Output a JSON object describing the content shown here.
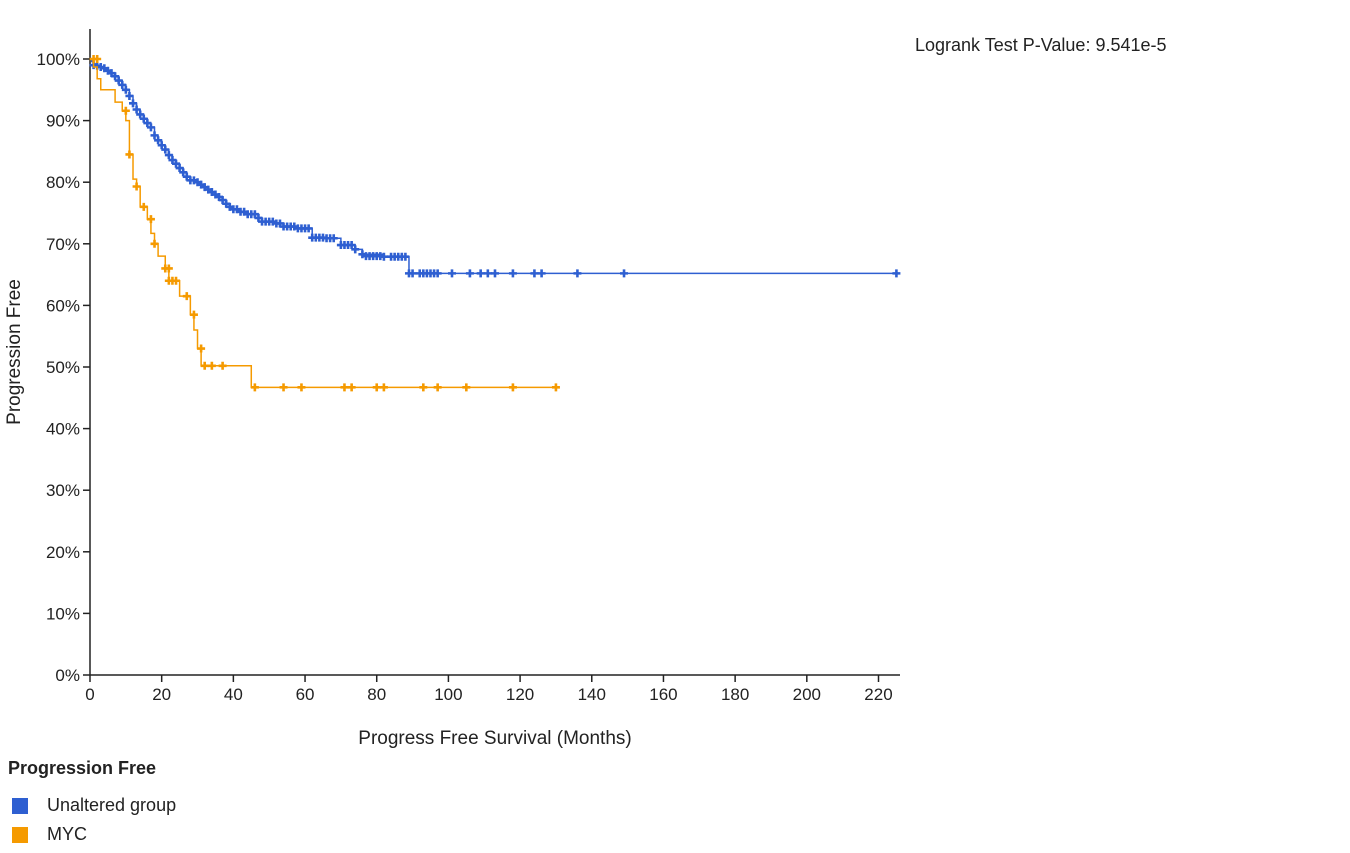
{
  "chart_data": {
    "type": "line",
    "subtype": "kaplan-meier",
    "title": "",
    "xlabel": "Progress Free Survival (Months)",
    "ylabel": "Progression Free",
    "xlim": [
      0,
      226
    ],
    "ylim": [
      0,
      100
    ],
    "x_ticks": [
      "0",
      "20",
      "40",
      "60",
      "80",
      "100",
      "120",
      "140",
      "160",
      "180",
      "200",
      "220"
    ],
    "y_ticks": [
      "0%",
      "10%",
      "20%",
      "30%",
      "40%",
      "50%",
      "60%",
      "70%",
      "80%",
      "90%",
      "100%"
    ],
    "grid": false,
    "annotation": "Logrank Test P-Value: 9.541e-5",
    "legend": {
      "title": "Progression Free",
      "placement": "bottom-left",
      "items": [
        {
          "label": "Unaltered group",
          "color": "#2e5fd1"
        },
        {
          "label": "MYC",
          "color": "#f59a00"
        }
      ]
    },
    "series": [
      {
        "name": "Unaltered group",
        "color": "#2e5fd1",
        "steps": [
          [
            0,
            100
          ],
          [
            0.5,
            99.6
          ],
          [
            1,
            99.2
          ],
          [
            2,
            98.9
          ],
          [
            3,
            98.7
          ],
          [
            4,
            98.5
          ],
          [
            5,
            98.1
          ],
          [
            6,
            97.7
          ],
          [
            7,
            97.2
          ],
          [
            8,
            96.5
          ],
          [
            9,
            95.8
          ],
          [
            10,
            95.0
          ],
          [
            11,
            94.0
          ],
          [
            12,
            92.8
          ],
          [
            13,
            91.8
          ],
          [
            14,
            91.0
          ],
          [
            15,
            90.3
          ],
          [
            16,
            89.6
          ],
          [
            17,
            88.9
          ],
          [
            18,
            87.6
          ],
          [
            19,
            86.8
          ],
          [
            20,
            86.0
          ],
          [
            21,
            85.3
          ],
          [
            22,
            84.4
          ],
          [
            23,
            83.6
          ],
          [
            24,
            83.0
          ],
          [
            25,
            82.3
          ],
          [
            26,
            81.6
          ],
          [
            27,
            80.9
          ],
          [
            28,
            80.3
          ],
          [
            30,
            80.0
          ],
          [
            31,
            79.6
          ],
          [
            32,
            79.2
          ],
          [
            33,
            78.8
          ],
          [
            34,
            78.4
          ],
          [
            35,
            78.0
          ],
          [
            36,
            77.6
          ],
          [
            37,
            77.1
          ],
          [
            38,
            76.5
          ],
          [
            39,
            76.0
          ],
          [
            40,
            75.6
          ],
          [
            42,
            75.2
          ],
          [
            44,
            74.8
          ],
          [
            47,
            74.2
          ],
          [
            48,
            73.6
          ],
          [
            52,
            73.3
          ],
          [
            54,
            72.8
          ],
          [
            58,
            72.5
          ],
          [
            62,
            71.0
          ],
          [
            66,
            70.9
          ],
          [
            70,
            69.8
          ],
          [
            74,
            69.1
          ],
          [
            76,
            68.3
          ],
          [
            82,
            67.9
          ],
          [
            88,
            67.9
          ],
          [
            89,
            65.2
          ],
          [
            226,
            65.2
          ]
        ],
        "censored": [
          [
            1,
            99
          ],
          [
            2,
            98.9
          ],
          [
            3,
            98.7
          ],
          [
            4,
            98.5
          ],
          [
            5,
            98.1
          ],
          [
            6,
            97.7
          ],
          [
            7,
            97.2
          ],
          [
            8,
            96.5
          ],
          [
            9,
            95.8
          ],
          [
            10,
            95
          ],
          [
            11,
            94
          ],
          [
            12,
            92.8
          ],
          [
            13,
            91.8
          ],
          [
            14,
            91
          ],
          [
            15,
            90.3
          ],
          [
            16,
            89.6
          ],
          [
            17,
            88.9
          ],
          [
            18,
            87.6
          ],
          [
            19,
            86.8
          ],
          [
            20,
            86
          ],
          [
            21,
            85.3
          ],
          [
            22,
            84.4
          ],
          [
            23,
            83.6
          ],
          [
            24,
            83
          ],
          [
            25,
            82.3
          ],
          [
            26,
            81.6
          ],
          [
            27,
            80.9
          ],
          [
            28,
            80.3
          ],
          [
            29,
            80.3
          ],
          [
            30,
            80
          ],
          [
            31,
            79.6
          ],
          [
            32,
            79.2
          ],
          [
            33,
            78.8
          ],
          [
            34,
            78.4
          ],
          [
            35,
            78
          ],
          [
            36,
            77.6
          ],
          [
            37,
            77.1
          ],
          [
            38,
            76.5
          ],
          [
            39,
            76
          ],
          [
            40,
            75.6
          ],
          [
            41,
            75.6
          ],
          [
            42,
            75.2
          ],
          [
            43,
            75.2
          ],
          [
            44,
            74.8
          ],
          [
            45,
            74.8
          ],
          [
            46,
            74.8
          ],
          [
            47,
            74.2
          ],
          [
            48,
            73.6
          ],
          [
            49,
            73.6
          ],
          [
            50,
            73.6
          ],
          [
            51,
            73.6
          ],
          [
            52,
            73.3
          ],
          [
            53,
            73.3
          ],
          [
            54,
            72.8
          ],
          [
            55,
            72.8
          ],
          [
            56,
            72.8
          ],
          [
            57,
            72.8
          ],
          [
            58,
            72.5
          ],
          [
            59,
            72.5
          ],
          [
            60,
            72.5
          ],
          [
            61,
            72.5
          ],
          [
            62,
            71
          ],
          [
            63,
            71
          ],
          [
            64,
            71
          ],
          [
            65,
            71
          ],
          [
            66,
            70.9
          ],
          [
            67,
            70.9
          ],
          [
            68,
            70.9
          ],
          [
            70,
            69.8
          ],
          [
            71,
            69.8
          ],
          [
            72,
            69.8
          ],
          [
            73,
            69.8
          ],
          [
            74,
            69.1
          ],
          [
            76,
            68.3
          ],
          [
            77,
            68
          ],
          [
            78,
            68
          ],
          [
            79,
            68
          ],
          [
            80,
            68
          ],
          [
            81,
            68
          ],
          [
            82,
            67.9
          ],
          [
            84,
            67.9
          ],
          [
            85,
            67.9
          ],
          [
            86,
            67.9
          ],
          [
            87,
            67.9
          ],
          [
            88,
            67.9
          ],
          [
            89,
            65.2
          ],
          [
            90,
            65.2
          ],
          [
            92,
            65.2
          ],
          [
            93,
            65.2
          ],
          [
            94,
            65.2
          ],
          [
            95,
            65.2
          ],
          [
            96,
            65.2
          ],
          [
            97,
            65.2
          ],
          [
            101,
            65.2
          ],
          [
            106,
            65.2
          ],
          [
            109,
            65.2
          ],
          [
            111,
            65.2
          ],
          [
            113,
            65.2
          ],
          [
            118,
            65.2
          ],
          [
            124,
            65.2
          ],
          [
            126,
            65.2
          ],
          [
            136,
            65.2
          ],
          [
            149,
            65.2
          ],
          [
            225,
            65.2
          ]
        ]
      },
      {
        "name": "MYC",
        "color": "#f59a00",
        "steps": [
          [
            0,
            100
          ],
          [
            1,
            98.7
          ],
          [
            2,
            96.8
          ],
          [
            3,
            95.0
          ],
          [
            7,
            93.0
          ],
          [
            9,
            91.6
          ],
          [
            10,
            90.0
          ],
          [
            11,
            84.5
          ],
          [
            12,
            80.5
          ],
          [
            13,
            79.3
          ],
          [
            14,
            76.0
          ],
          [
            16,
            74.0
          ],
          [
            17,
            71.7
          ],
          [
            18,
            70.0
          ],
          [
            19,
            68.0
          ],
          [
            21,
            66.0
          ],
          [
            22,
            64.0
          ],
          [
            25,
            61.5
          ],
          [
            28,
            58.5
          ],
          [
            29,
            56.0
          ],
          [
            30,
            53.0
          ],
          [
            31,
            50.2
          ],
          [
            45,
            46.7
          ],
          [
            130,
            46.7
          ]
        ],
        "censored": [
          [
            1,
            100
          ],
          [
            2,
            100
          ],
          [
            10,
            91.6
          ],
          [
            11,
            84.5
          ],
          [
            13,
            79.3
          ],
          [
            15,
            76
          ],
          [
            17,
            74
          ],
          [
            18,
            70
          ],
          [
            21,
            66
          ],
          [
            22,
            66
          ],
          [
            22,
            64
          ],
          [
            23,
            64
          ],
          [
            24,
            64
          ],
          [
            27,
            61.5
          ],
          [
            29,
            58.5
          ],
          [
            31,
            53
          ],
          [
            32,
            50.2
          ],
          [
            34,
            50.2
          ],
          [
            37,
            50.2
          ],
          [
            46,
            46.7
          ],
          [
            54,
            46.7
          ],
          [
            59,
            46.7
          ],
          [
            71,
            46.7
          ],
          [
            73,
            46.7
          ],
          [
            80,
            46.7
          ],
          [
            82,
            46.7
          ],
          [
            93,
            46.7
          ],
          [
            97,
            46.7
          ],
          [
            105,
            46.7
          ],
          [
            118,
            46.7
          ],
          [
            130,
            46.7
          ]
        ]
      }
    ]
  }
}
